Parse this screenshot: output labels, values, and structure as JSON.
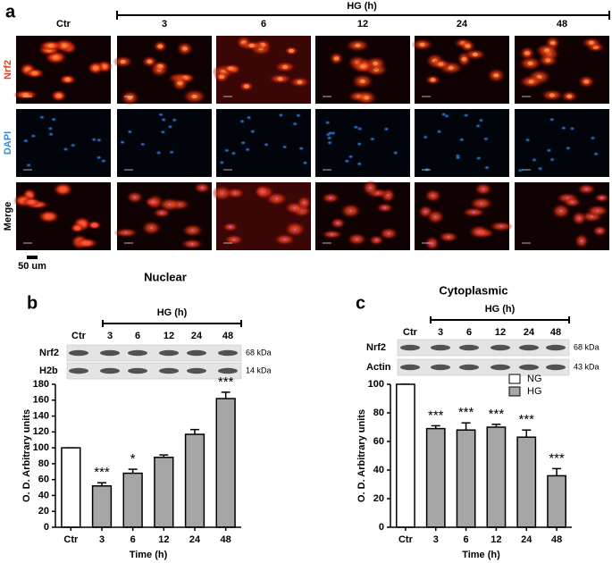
{
  "panel_a": {
    "panel": "a",
    "group_label": "HG (h)",
    "columns": [
      "Ctr",
      "3",
      "6",
      "12",
      "24",
      "48"
    ],
    "rows": [
      "Nrf2",
      "DAPI",
      "Merge"
    ],
    "row_colors": [
      "#e8401c",
      "#2a8ee0",
      "#000000"
    ],
    "scale_label": "50 um"
  },
  "panel_b_blot": {
    "group_label": "HG (h)",
    "lanes": [
      "Ctr",
      "3",
      "6",
      "12",
      "24",
      "48"
    ],
    "rows": [
      {
        "label": "Nrf2",
        "kda": "68 kDa"
      },
      {
        "label": "H2b",
        "kda": "14 kDa"
      }
    ]
  },
  "panel_c_blot": {
    "group_label": "HG (h)",
    "lanes": [
      "Ctr",
      "3",
      "6",
      "12",
      "24",
      "48"
    ],
    "rows": [
      {
        "label": "Nrf2",
        "kda": "68 kDa"
      },
      {
        "label": "Actin",
        "kda": "43 kDa"
      }
    ]
  },
  "chart_data": [
    {
      "type": "bar",
      "panel": "b",
      "title": "Nuclear",
      "x_label": "Time (h)",
      "y_label": "O. D. Arbitrary units",
      "categories": [
        "Ctr",
        "3",
        "6",
        "12",
        "24",
        "48"
      ],
      "values": [
        100,
        52,
        68,
        88,
        117,
        162
      ],
      "errors": [
        0,
        4,
        5,
        3,
        6,
        8
      ],
      "colors": [
        "#ffffff",
        "#a6a6a6",
        "#a6a6a6",
        "#a6a6a6",
        "#a6a6a6",
        "#a6a6a6"
      ],
      "annotations": [
        null,
        "***",
        "*",
        null,
        null,
        "***"
      ],
      "ylim": [
        0,
        180
      ],
      "yticks": [
        0,
        20,
        40,
        60,
        80,
        100,
        120,
        140,
        160,
        180
      ]
    },
    {
      "type": "bar",
      "panel": "c",
      "title": "Cytoplasmic",
      "x_label": "Time (h)",
      "y_label": "O. D. Arbitrary units",
      "categories": [
        "Ctr",
        "3",
        "6",
        "12",
        "24",
        "48"
      ],
      "values": [
        100,
        69,
        68,
        70,
        63,
        36
      ],
      "errors": [
        0,
        2,
        5,
        2,
        5,
        5
      ],
      "colors": [
        "#ffffff",
        "#a6a6a6",
        "#a6a6a6",
        "#a6a6a6",
        "#a6a6a6",
        "#a6a6a6"
      ],
      "annotations": [
        null,
        "***",
        "***",
        "***",
        "***",
        "***"
      ],
      "legend": [
        {
          "name": "NG",
          "color": "#ffffff"
        },
        {
          "name": "HG",
          "color": "#a6a6a6"
        }
      ],
      "legend_loc": "upper right",
      "ylim": [
        0,
        100
      ],
      "yticks": [
        0,
        20,
        40,
        60,
        80,
        100
      ]
    }
  ]
}
